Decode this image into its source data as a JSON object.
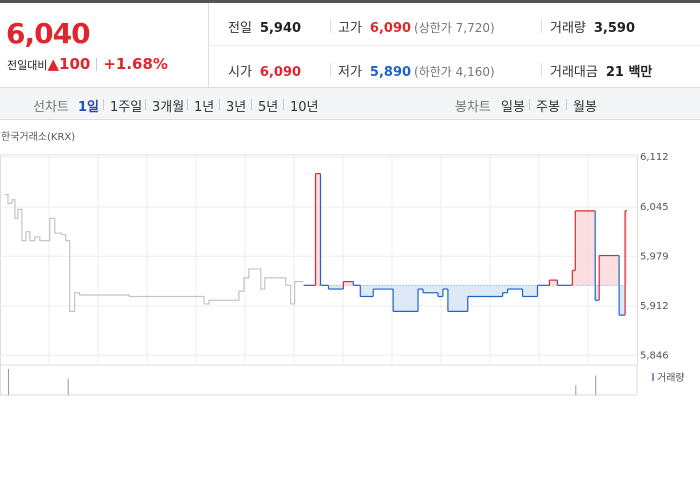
{
  "summary": {
    "price": "6,040",
    "change_label": "전일대비",
    "change": "▲100",
    "change_pct": "+1.68%"
  },
  "info": [
    {
      "label": "전일",
      "value": "5,940"
    },
    {
      "label": "고가",
      "value": "6,090",
      "note": "(상한가 7,720)"
    },
    {
      "label": "거래량",
      "value": "3,590"
    },
    {
      "label": "시가",
      "value": "6,090"
    },
    {
      "label": "저가",
      "value": "5,890",
      "note": "(하한가 4,160)"
    },
    {
      "label": "거래대금",
      "value": "21 백만"
    }
  ],
  "tabs": {
    "line_label": "선차트",
    "line": [
      "1일",
      "1주일",
      "3개월",
      "1년",
      "3년",
      "5년",
      "10년"
    ],
    "candle_label": "봉차트",
    "candle": [
      "일봉",
      "주봉",
      "월봉"
    ]
  },
  "chart_data": {
    "type": "line",
    "source": "한국거래소(KRX)",
    "xlim": [
      0,
      640
    ],
    "ylim": [
      5833,
      6115
    ],
    "yticks": [
      {
        "value": 6112,
        "label": "6,112"
      },
      {
        "value": 6045,
        "label": "6,045"
      },
      {
        "value": 5979,
        "label": "5,979"
      },
      {
        "value": 5912,
        "label": "5,912"
      },
      {
        "value": 5846,
        "label": "5,846"
      }
    ],
    "baseline": 5940,
    "series": [
      {
        "color": "#c4c4c4",
        "style": "plain",
        "x": [
          5,
          8,
          12,
          15,
          18,
          22,
          26,
          30,
          35,
          40,
          45,
          50,
          55,
          62,
          66,
          70,
          75,
          80,
          130,
          200,
          205,
          210,
          240,
          245,
          250,
          262,
          266,
          270,
          287,
          292,
          296,
          300
        ],
        "values": [
          6062,
          6050,
          6055,
          6030,
          6042,
          6000,
          6012,
          6000,
          6005,
          6000,
          6000,
          6030,
          6010,
          6008,
          6000,
          5905,
          5930,
          5927,
          5925,
          5925,
          5915,
          5920,
          5932,
          5950,
          5962,
          5935,
          5950,
          5950,
          5940,
          5915,
          5945,
          5945
        ]
      },
      {
        "color": "#e0262c",
        "down_color": "#1e64c8",
        "style": "baseline",
        "x": [
          305,
          317,
          322,
          330,
          345,
          355,
          362,
          375,
          395,
          420,
          425,
          440,
          445,
          450,
          470,
          505,
          510,
          525,
          540,
          552,
          560,
          575,
          578,
          598,
          602,
          615,
          622,
          628
        ],
        "values": [
          5940,
          6090,
          5940,
          5935,
          5945,
          5940,
          5925,
          5935,
          5905,
          5935,
          5930,
          5925,
          5935,
          5905,
          5925,
          5930,
          5935,
          5925,
          5940,
          5947,
          5940,
          5960,
          6040,
          5920,
          5980,
          5980,
          5900,
          6040
        ]
      }
    ],
    "volume": {
      "name": "거래량",
      "color": "#9c7dd0",
      "x": [
        8,
        68,
        578,
        598
      ],
      "values": [
        40,
        25,
        15,
        30
      ]
    }
  }
}
